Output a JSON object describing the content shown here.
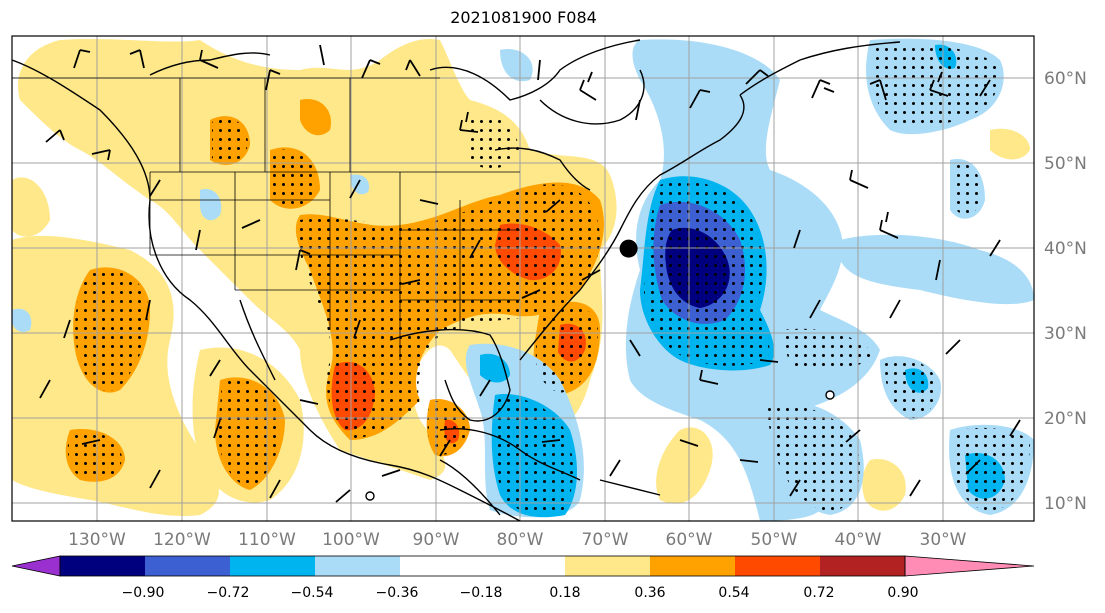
{
  "title": "2021081900 F084",
  "map": {
    "lon_range": [
      -143,
      -22
    ],
    "lat_range": [
      7.5,
      65
    ],
    "lon_ticks": [
      "130°W",
      "120°W",
      "110°W",
      "100°W",
      "90°W",
      "80°W",
      "70°W",
      "60°W",
      "50°W",
      "40°W",
      "30°W"
    ],
    "lat_ticks": [
      "60°N",
      "50°N",
      "40°N",
      "30°N",
      "20°N",
      "10°N"
    ],
    "grid": true,
    "marker": {
      "lon": -70,
      "lat": 39.8
    }
  },
  "colorbar": {
    "levels": [
      "−0.90",
      "−0.72",
      "−0.54",
      "−0.36",
      "−0.18",
      "0.18",
      "0.36",
      "0.54",
      "0.72",
      "0.90"
    ],
    "colors": [
      "#9b30d0",
      "#00007f",
      "#3c5fd2",
      "#00b4f0",
      "#aadcf8",
      "#ffffff",
      "#ffe88a",
      "#ffa200",
      "#ff4a00",
      "#b32222",
      "#ff8cb4"
    ],
    "extend": "both"
  },
  "palette": {
    "pos1": "#ffe88a",
    "pos2": "#ffa200",
    "pos3": "#ff4a00",
    "neg1": "#aadcf8",
    "neg2": "#00b4f0",
    "neg3": "#3c5fd2",
    "neg4": "#00007f"
  }
}
